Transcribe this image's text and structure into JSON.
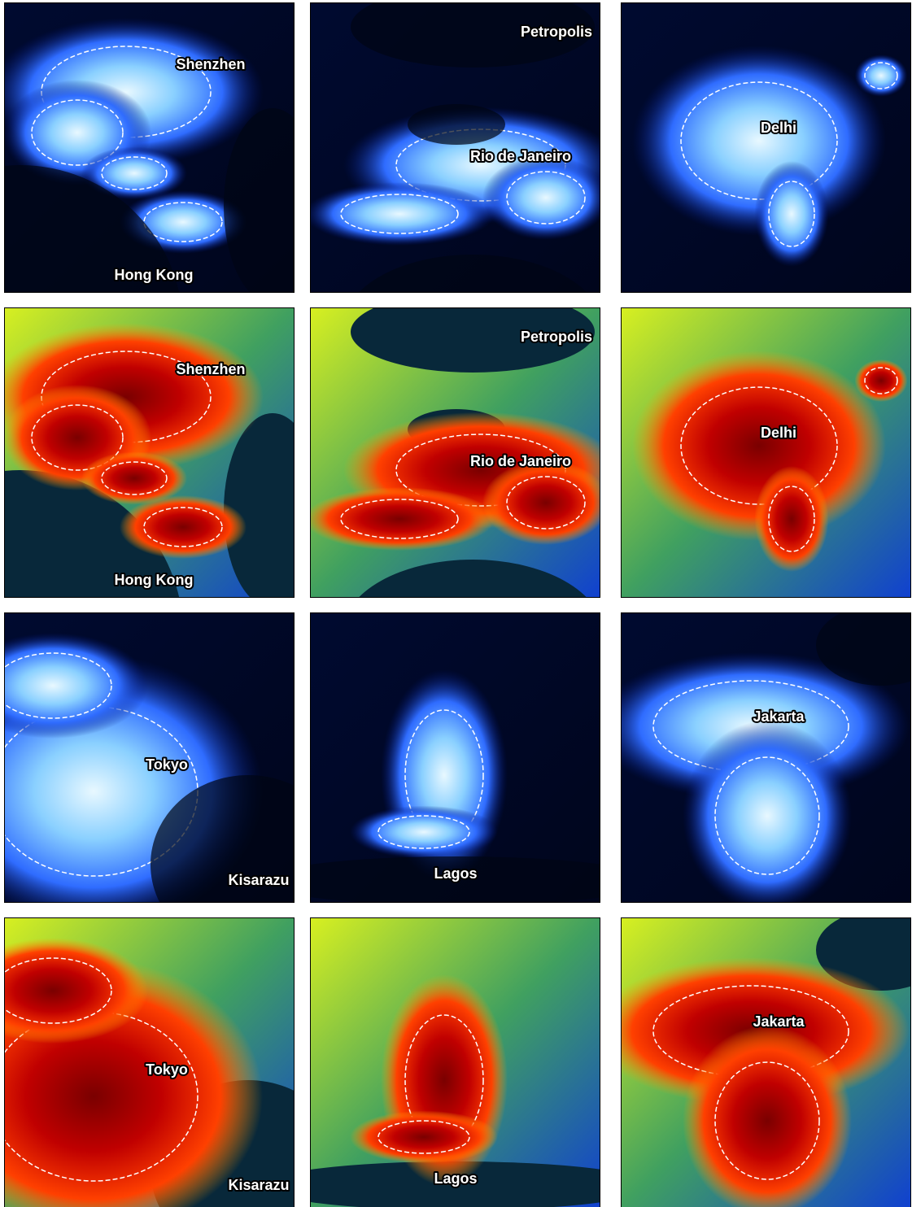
{
  "panels": [
    {
      "labels": [
        "Shenzhen",
        "Hong Kong"
      ]
    },
    {
      "labels": [
        "Petropolis",
        "Rio de Janeiro"
      ]
    },
    {
      "labels": [
        "Delhi"
      ]
    },
    {
      "labels": [
        "Shenzhen",
        "Hong Kong"
      ]
    },
    {
      "labels": [
        "Petropolis",
        "Rio de Janeiro"
      ]
    },
    {
      "labels": [
        "Delhi"
      ]
    },
    {
      "labels": [
        "Tokyo",
        "Kisarazu"
      ]
    },
    {
      "labels": [
        "Lagos"
      ]
    },
    {
      "labels": [
        "Jakarta"
      ]
    },
    {
      "labels": [
        "Tokyo",
        "Kisarazu"
      ]
    },
    {
      "labels": [
        "Lagos"
      ]
    },
    {
      "labels": [
        "Jakarta"
      ]
    }
  ]
}
